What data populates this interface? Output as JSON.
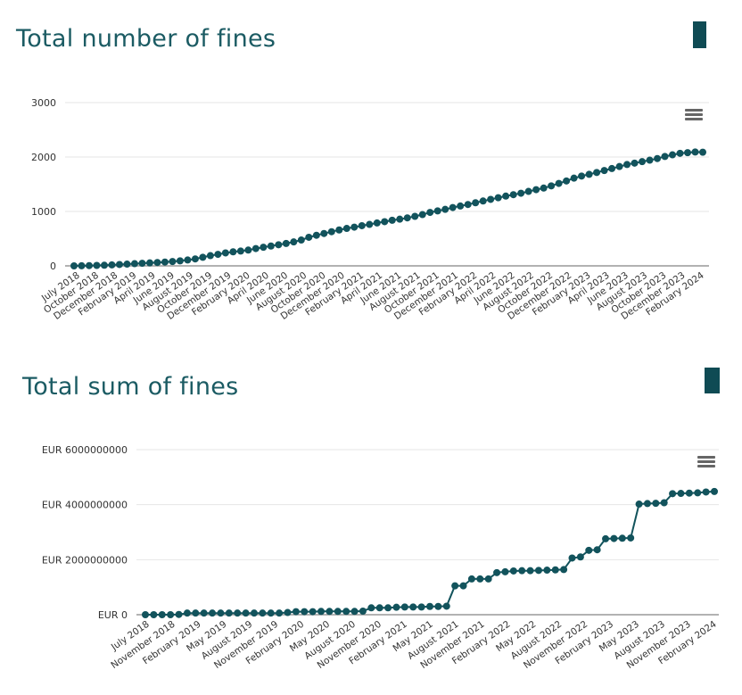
{
  "colors": {
    "series": "#12535c",
    "title": "#1b5b63",
    "accent": "#0f4b54",
    "grid": "#e6e6e6",
    "axis": "#999999"
  },
  "icons": [
    "hamburger-menu-icon"
  ],
  "chart_data": [
    {
      "type": "line",
      "title": "Total number of fines",
      "xlabel": "",
      "ylabel": "",
      "ylim": [
        0,
        3000
      ],
      "y_ticks": [
        "0",
        "1000",
        "2000",
        "3000"
      ],
      "x_tick_labels": [
        "July 2018",
        "October 2018",
        "December 2018",
        "February 2019",
        "April 2019",
        "June 2019",
        "August 2019",
        "October 2019",
        "December 2019",
        "February 2020",
        "April 2020",
        "June 2020",
        "August 2020",
        "October 2020",
        "December 2020",
        "February 2021",
        "April 2021",
        "June 2021",
        "August 2021",
        "October 2021",
        "December 2021",
        "February 2022",
        "April 2022",
        "June 2022",
        "August 2022",
        "October 2022",
        "December 2022",
        "February 2023",
        "April 2023",
        "June 2023",
        "August 2023",
        "October 2023",
        "December 2023",
        "February 2024"
      ],
      "grid": true,
      "legend": "none",
      "series": [
        {
          "values": [
            0,
            2,
            5,
            8,
            12,
            18,
            25,
            32,
            40,
            48,
            55,
            62,
            70,
            80,
            92,
            108,
            128,
            158,
            188,
            212,
            238,
            258,
            272,
            290,
            318,
            342,
            365,
            388,
            412,
            440,
            475,
            525,
            562,
            595,
            628,
            660,
            688,
            712,
            738,
            762,
            788,
            812,
            838,
            858,
            882,
            910,
            942,
            982,
            1010,
            1038,
            1072,
            1100,
            1128,
            1160,
            1192,
            1222,
            1252,
            1282,
            1308,
            1335,
            1368,
            1400,
            1430,
            1470,
            1515,
            1560,
            1612,
            1650,
            1682,
            1716,
            1752,
            1788,
            1825,
            1862,
            1888,
            1915,
            1942,
            1972,
            2010,
            2040,
            2068,
            2080,
            2092,
            2088
          ]
        }
      ]
    },
    {
      "type": "line",
      "title": "Total sum of fines",
      "xlabel": "",
      "ylabel": "",
      "ylim": [
        0,
        6000000000
      ],
      "y_ticks": [
        "EUR 0",
        "EUR 2000000000",
        "EUR 4000000000",
        "EUR 6000000000"
      ],
      "x_tick_labels": [
        "July 2018",
        "November 2018",
        "February 2019",
        "May 2019",
        "August 2019",
        "November 2019",
        "February 2020",
        "May 2020",
        "August 2020",
        "November 2020",
        "February 2021",
        "May 2021",
        "August 2021",
        "November 2021",
        "February 2022",
        "May 2022",
        "August 2022",
        "November 2022",
        "February 2023",
        "May 2023",
        "August 2023",
        "November 2023",
        "February 2024"
      ],
      "grid": true,
      "legend": "none",
      "series": [
        {
          "values": [
            0,
            0,
            0,
            0,
            10000000,
            60000000,
            60000000,
            60000000,
            60000000,
            60000000,
            60000000,
            60000000,
            60000000,
            60000000,
            60000000,
            60000000,
            60000000,
            80000000,
            110000000,
            110000000,
            110000000,
            120000000,
            120000000,
            120000000,
            120000000,
            120000000,
            130000000,
            250000000,
            250000000,
            250000000,
            270000000,
            280000000,
            280000000,
            280000000,
            300000000,
            300000000,
            310000000,
            1050000000,
            1050000000,
            1300000000,
            1300000000,
            1300000000,
            1530000000,
            1560000000,
            1590000000,
            1600000000,
            1600000000,
            1610000000,
            1620000000,
            1630000000,
            1640000000,
            2060000000,
            2100000000,
            2340000000,
            2360000000,
            2760000000,
            2770000000,
            2780000000,
            2790000000,
            4020000000,
            4040000000,
            4050000000,
            4070000000,
            4400000000,
            4410000000,
            4420000000,
            4430000000,
            4460000000,
            4480000000
          ]
        }
      ]
    }
  ]
}
